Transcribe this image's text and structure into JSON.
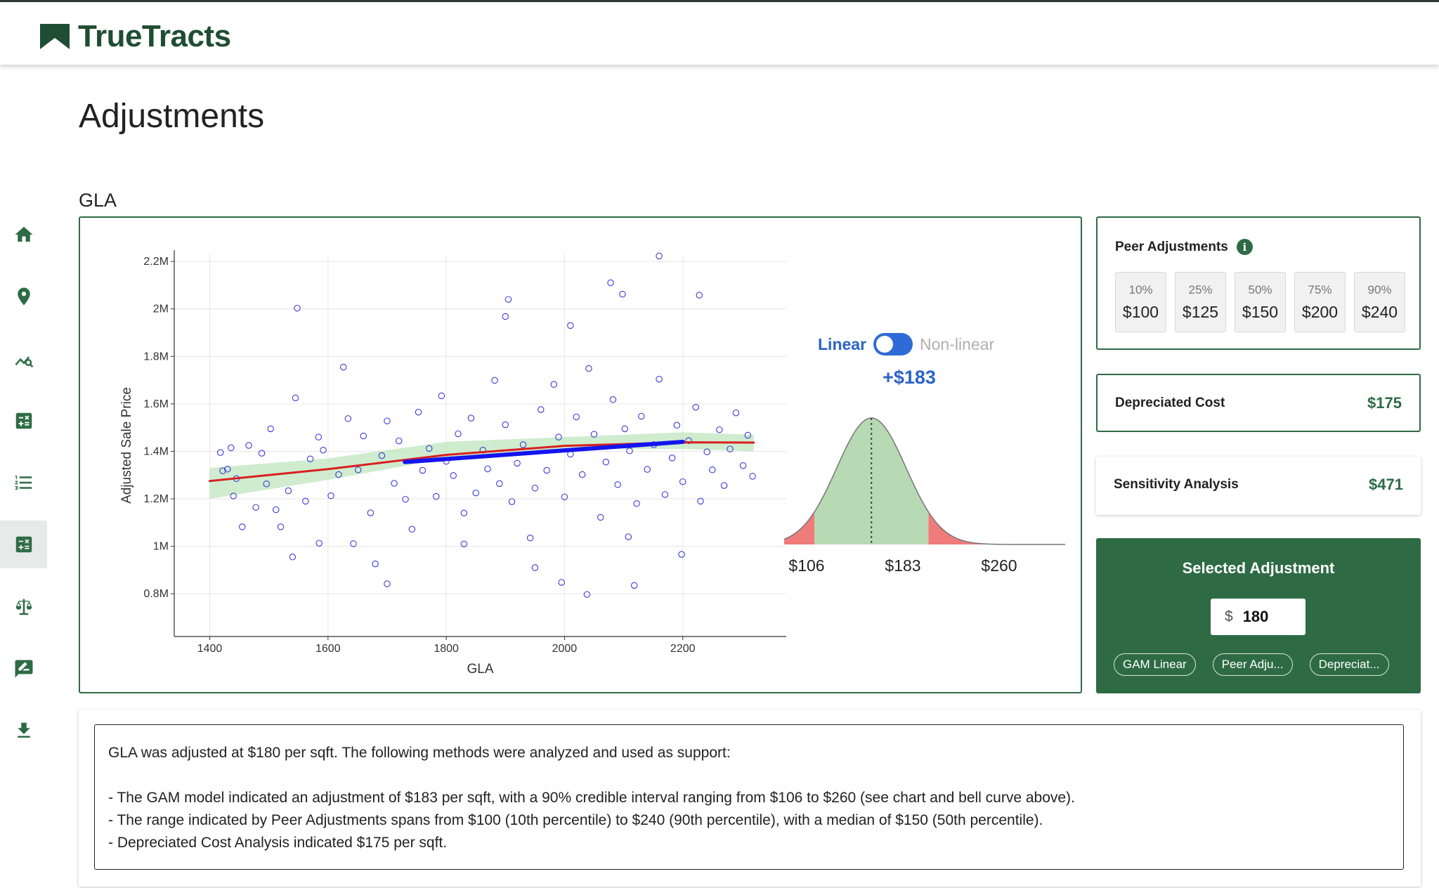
{
  "app": {
    "name": "TrueTracts"
  },
  "sidebar": {
    "items": [
      {
        "icon": "home-icon"
      },
      {
        "icon": "location-pin-icon"
      },
      {
        "icon": "chart-search-icon"
      },
      {
        "icon": "calculator-icon"
      },
      {
        "icon": "list-icon"
      },
      {
        "icon": "calculator-icon",
        "active": true
      },
      {
        "icon": "scale-icon"
      },
      {
        "icon": "signature-icon"
      },
      {
        "icon": "download-icon"
      }
    ]
  },
  "page": {
    "title": "Adjustments",
    "section": "GLA"
  },
  "chart_data": {
    "type": "scatter",
    "xlabel": "GLA",
    "ylabel": "Adjusted Sale Price",
    "xlim": [
      1340,
      2375
    ],
    "ylim": [
      620000,
      2230000
    ],
    "x_ticks": [
      1400,
      1600,
      1800,
      2000,
      2200
    ],
    "x_tick_labels": [
      "1400",
      "1600",
      "1800",
      "2000",
      "2200"
    ],
    "y_ticks": [
      800000,
      1000000,
      1200000,
      1400000,
      1600000,
      1800000,
      2000000,
      2200000
    ],
    "y_tick_labels": [
      "0.8M",
      "1M",
      "1.2M",
      "1.4M",
      "1.6M",
      "1.8M",
      "2M",
      "2.2M"
    ],
    "grid": true,
    "series": [
      {
        "type": "scatter",
        "color": "#3b3bd9",
        "points": [
          [
            1418,
            1395000
          ],
          [
            1430,
            1325000
          ],
          [
            1422,
            1318000
          ],
          [
            1436,
            1415000
          ],
          [
            1440,
            1212000
          ],
          [
            1445,
            1285000
          ],
          [
            1455,
            1082000
          ],
          [
            1466,
            1425000
          ],
          [
            1478,
            1164000
          ],
          [
            1488,
            1392000
          ],
          [
            1496,
            1263000
          ],
          [
            1503,
            1495000
          ],
          [
            1512,
            1154000
          ],
          [
            1520,
            1082000
          ],
          [
            1533,
            1234000
          ],
          [
            1540,
            955000
          ],
          [
            1545,
            1625000
          ],
          [
            1562,
            1190000
          ],
          [
            1570,
            1368000
          ],
          [
            1584,
            1460000
          ],
          [
            1592,
            1405000
          ],
          [
            1605,
            1213000
          ],
          [
            1618,
            1302000
          ],
          [
            1626,
            1755000
          ],
          [
            1634,
            1538000
          ],
          [
            1643,
            1011000
          ],
          [
            1651,
            1322000
          ],
          [
            1660,
            1465000
          ],
          [
            1672,
            1141000
          ],
          [
            1680,
            926000
          ],
          [
            1691,
            1382000
          ],
          [
            1700,
            1528000
          ],
          [
            1712,
            1265000
          ],
          [
            1720,
            1444000
          ],
          [
            1731,
            1198000
          ],
          [
            1742,
            1072000
          ],
          [
            1753,
            1565000
          ],
          [
            1760,
            1320000
          ],
          [
            1771,
            1412000
          ],
          [
            1783,
            1210000
          ],
          [
            1792,
            1634000
          ],
          [
            1800,
            1358000
          ],
          [
            1812,
            1298000
          ],
          [
            1820,
            1474000
          ],
          [
            1830,
            1140000
          ],
          [
            1842,
            1540000
          ],
          [
            1850,
            1225000
          ],
          [
            1862,
            1405000
          ],
          [
            1870,
            1326000
          ],
          [
            1882,
            1699000
          ],
          [
            1890,
            1264000
          ],
          [
            1900,
            1512000
          ],
          [
            1911,
            1188000
          ],
          [
            1920,
            1350000
          ],
          [
            1930,
            1428000
          ],
          [
            1942,
            1035000
          ],
          [
            1950,
            1245000
          ],
          [
            1960,
            1576000
          ],
          [
            1970,
            1320000
          ],
          [
            1982,
            1682000
          ],
          [
            1990,
            1460000
          ],
          [
            2000,
            1208000
          ],
          [
            2010,
            1388000
          ],
          [
            2020,
            1545000
          ],
          [
            2030,
            1302000
          ],
          [
            2041,
            1749000
          ],
          [
            2050,
            1472000
          ],
          [
            2061,
            1122000
          ],
          [
            2070,
            1355000
          ],
          [
            2082,
            1618000
          ],
          [
            2090,
            1260000
          ],
          [
            2102,
            1495000
          ],
          [
            2110,
            1402000
          ],
          [
            2122,
            1180000
          ],
          [
            2130,
            1548000
          ],
          [
            2140,
            1324000
          ],
          [
            2151,
            1428000
          ],
          [
            2160,
            1704000
          ],
          [
            2170,
            1218000
          ],
          [
            2182,
            1372000
          ],
          [
            2190,
            1510000
          ],
          [
            2200,
            1272000
          ],
          [
            2210,
            1445000
          ],
          [
            2222,
            1586000
          ],
          [
            2230,
            1190000
          ],
          [
            2241,
            1398000
          ],
          [
            2250,
            1322000
          ],
          [
            2262,
            1491000
          ],
          [
            2270,
            1256000
          ],
          [
            2280,
            1410000
          ],
          [
            2290,
            1562000
          ],
          [
            2302,
            1340000
          ],
          [
            2310,
            1468000
          ],
          [
            2318,
            1295000
          ],
          [
            1548,
            2003000
          ],
          [
            1905,
            2040000
          ],
          [
            2078,
            2110000
          ],
          [
            2098,
            2062000
          ],
          [
            2160,
            2223000
          ],
          [
            2228,
            2058000
          ],
          [
            2010,
            1930000
          ],
          [
            1900,
            1968000
          ],
          [
            1995,
            848000
          ],
          [
            2038,
            797000
          ],
          [
            2118,
            835000
          ],
          [
            2108,
            1040000
          ],
          [
            2198,
            966000
          ],
          [
            1585,
            1013000
          ],
          [
            1700,
            842000
          ],
          [
            1950,
            910000
          ],
          [
            1830,
            1010000
          ]
        ]
      },
      {
        "type": "band",
        "name": "confidence band",
        "color": "#bfe6bf",
        "x": [
          1400,
          1600,
          1800,
          2000,
          2200,
          2320
        ],
        "lower": [
          1200000,
          1280000,
          1370000,
          1410000,
          1410000,
          1400000
        ],
        "upper": [
          1330000,
          1370000,
          1440000,
          1460000,
          1480000,
          1470000
        ]
      },
      {
        "type": "line",
        "name": "non-linear fit",
        "color": "#d91f1f",
        "x": [
          1400,
          1600,
          1800,
          2000,
          2200,
          2320
        ],
        "y": [
          1275000,
          1325000,
          1385000,
          1423000,
          1438000,
          1437000
        ]
      },
      {
        "type": "line",
        "name": "linear fit",
        "color": "#1414ee",
        "x": [
          1730,
          2200
        ],
        "y": [
          1355000,
          1440000
        ]
      }
    ]
  },
  "bell": {
    "toggle_linear": "Linear",
    "toggle_nonlinear": "Non-linear",
    "value_label": "+$183",
    "center": 183,
    "low": 106,
    "high": 260,
    "labels": [
      "$106",
      "$183",
      "$260"
    ]
  },
  "peer": {
    "title": "Peer Adjustments",
    "info_icon": "i",
    "percentiles": [
      {
        "label": "10%",
        "value": "$100"
      },
      {
        "label": "25%",
        "value": "$125"
      },
      {
        "label": "50%",
        "value": "$150"
      },
      {
        "label": "75%",
        "value": "$200"
      },
      {
        "label": "90%",
        "value": "$240"
      }
    ]
  },
  "depreciated": {
    "label": "Depreciated Cost",
    "value": "$175"
  },
  "sensitivity": {
    "label": "Sensitivity Analysis",
    "value": "$471"
  },
  "selected": {
    "title": "Selected Adjustment",
    "currency": "$",
    "value": "180",
    "chips": [
      "GAM Linear",
      "Peer Adju...",
      "Depreciat..."
    ]
  },
  "summary": {
    "line1": "GLA was adjusted at $180 per sqft. The following methods were analyzed and used as support:",
    "bullet1": "- The GAM model indicated an adjustment of $183 per sqft, with a 90% credible interval ranging from $106 to $260 (see chart and bell curve above).",
    "bullet2": "- The range indicated by Peer Adjustments spans from $100 (10th percentile) to $240 (90th percentile), with a median of $150 (50th percentile).",
    "bullet3": "- Depreciated Cost Analysis indicated $175 per sqft."
  },
  "colors": {
    "brand": "#2e6b45",
    "accent_blue": "#2c63c8",
    "tail_red": "#ef7b7b",
    "bell_green": "#b7d9b3"
  }
}
